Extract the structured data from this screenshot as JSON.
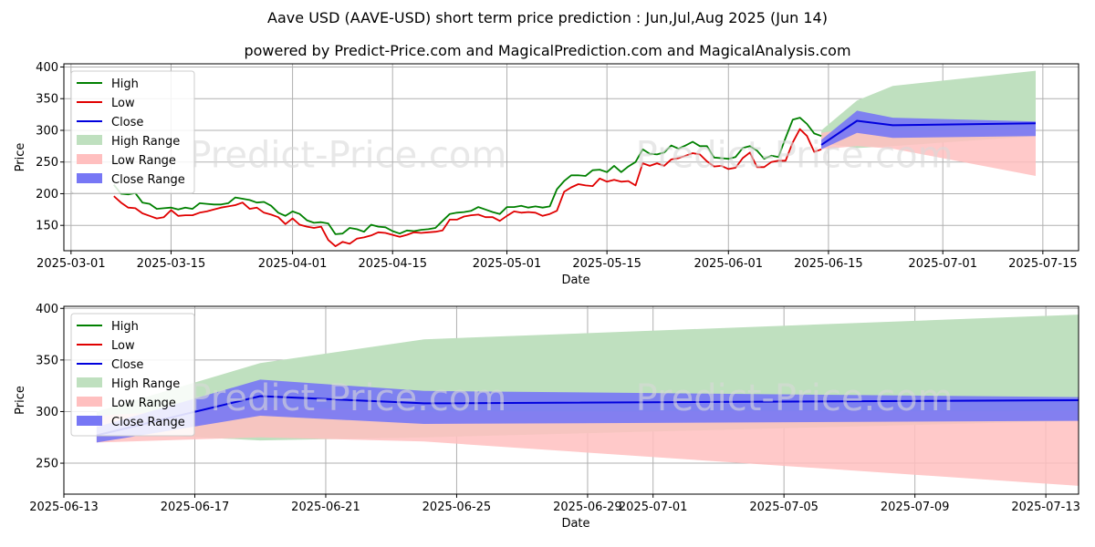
{
  "title": "Aave USD (AAVE-USD) short term price prediction : Jun,Jul,Aug 2025 (Jun 14)",
  "subtitle": "powered by Predict-Price.com and MagicalPrediction.com and MagicalAnalysis.com",
  "watermark": "Predict-Price.com",
  "colors": {
    "high": "#008000",
    "low": "#e00000",
    "close": "#0000dd",
    "high_range": "#bfe0bf",
    "low_range": "#ffbfbf",
    "close_range": "#7777f5"
  },
  "chart_data": [
    {
      "type": "line",
      "xlabel": "Date",
      "ylabel": "Price",
      "xlim": [
        "2025-02-28",
        "2025-07-20"
      ],
      "ylim": [
        110,
        405
      ],
      "grid": true,
      "legend_position": "top-left",
      "xticks": [
        "2025-03-01",
        "2025-03-15",
        "2025-04-01",
        "2025-04-15",
        "2025-05-01",
        "2025-05-15",
        "2025-06-01",
        "2025-06-15",
        "2025-07-01",
        "2025-07-15"
      ],
      "yticks": [
        150,
        200,
        250,
        300,
        350,
        400
      ],
      "legend": [
        "High",
        "Low",
        "Close",
        "High Range",
        "Low Range",
        "Close Range"
      ],
      "history_start": "2025-03-07",
      "high": [
        214,
        200,
        199,
        201,
        186,
        184,
        176,
        177,
        178,
        175,
        178,
        176,
        185,
        184,
        183,
        183,
        185,
        194,
        192,
        190,
        186,
        187,
        181,
        170,
        165,
        172,
        168,
        158,
        154,
        155,
        153,
        136,
        137,
        146,
        144,
        140,
        151,
        148,
        147,
        141,
        137,
        142,
        141,
        143,
        144,
        146,
        157,
        168,
        170,
        171,
        173,
        179,
        175,
        171,
        168,
        179,
        179,
        181,
        178,
        180,
        178,
        180,
        207,
        220,
        229,
        229,
        228,
        237,
        238,
        234,
        244,
        234,
        243,
        250,
        270,
        263,
        262,
        265,
        276,
        271,
        276,
        282,
        275,
        275,
        257,
        256,
        255,
        258,
        272,
        275,
        268,
        255,
        260,
        258,
        288,
        317,
        320,
        310,
        295,
        291
      ],
      "low": [
        196,
        186,
        178,
        177,
        169,
        165,
        161,
        163,
        174,
        165,
        166,
        166,
        170,
        172,
        175,
        178,
        180,
        182,
        186,
        176,
        178,
        170,
        167,
        163,
        152,
        161,
        151,
        148,
        146,
        148,
        127,
        117,
        124,
        121,
        129,
        131,
        134,
        139,
        138,
        135,
        132,
        135,
        139,
        138,
        139,
        140,
        142,
        159,
        159,
        164,
        166,
        167,
        163,
        163,
        157,
        165,
        172,
        170,
        171,
        170,
        165,
        168,
        173,
        203,
        210,
        215,
        213,
        212,
        224,
        219,
        222,
        219,
        220,
        213,
        248,
        244,
        248,
        244,
        254,
        256,
        260,
        264,
        262,
        251,
        243,
        244,
        239,
        241,
        256,
        265,
        242,
        242,
        250,
        252,
        252,
        281,
        302,
        291,
        266,
        270
      ],
      "forecast_x": [
        "2025-06-14",
        "2025-06-19",
        "2025-06-24",
        "2025-07-14"
      ],
      "close_forecast": [
        277,
        315,
        308,
        311
      ],
      "high_range_upper": [
        300,
        347,
        370,
        394
      ],
      "high_range_lower": [
        280,
        272,
        275,
        291
      ],
      "low_range_upper": [
        296,
        305,
        300,
        301
      ],
      "low_range_lower": [
        270,
        275,
        271,
        228
      ],
      "close_range_upper": [
        285,
        331,
        320,
        314
      ],
      "close_range_lower": [
        270,
        296,
        288,
        291
      ]
    },
    {
      "type": "line",
      "xlabel": "Date",
      "ylabel": "Price",
      "xlim": [
        "2025-06-13",
        "2025-07-14"
      ],
      "ylim": [
        220,
        402
      ],
      "grid": true,
      "legend_position": "top-left",
      "xticks": [
        "2025-06-13",
        "2025-06-17",
        "2025-06-21",
        "2025-06-25",
        "2025-06-29",
        "2025-07-01",
        "2025-07-05",
        "2025-07-09",
        "2025-07-13"
      ],
      "yticks": [
        250,
        300,
        350,
        400
      ],
      "legend": [
        "High",
        "Low",
        "Close",
        "High Range",
        "Low Range",
        "Close Range"
      ],
      "forecast_x": [
        "2025-06-14",
        "2025-06-19",
        "2025-06-24",
        "2025-07-14"
      ],
      "close_forecast": [
        277,
        315,
        308,
        311
      ],
      "high_range_upper": [
        300,
        347,
        370,
        394
      ],
      "high_range_lower": [
        280,
        272,
        275,
        291
      ],
      "low_range_upper": [
        296,
        305,
        300,
        301
      ],
      "low_range_lower": [
        270,
        275,
        271,
        228
      ],
      "close_range_upper": [
        285,
        331,
        320,
        314
      ],
      "close_range_lower": [
        270,
        296,
        288,
        291
      ]
    }
  ]
}
